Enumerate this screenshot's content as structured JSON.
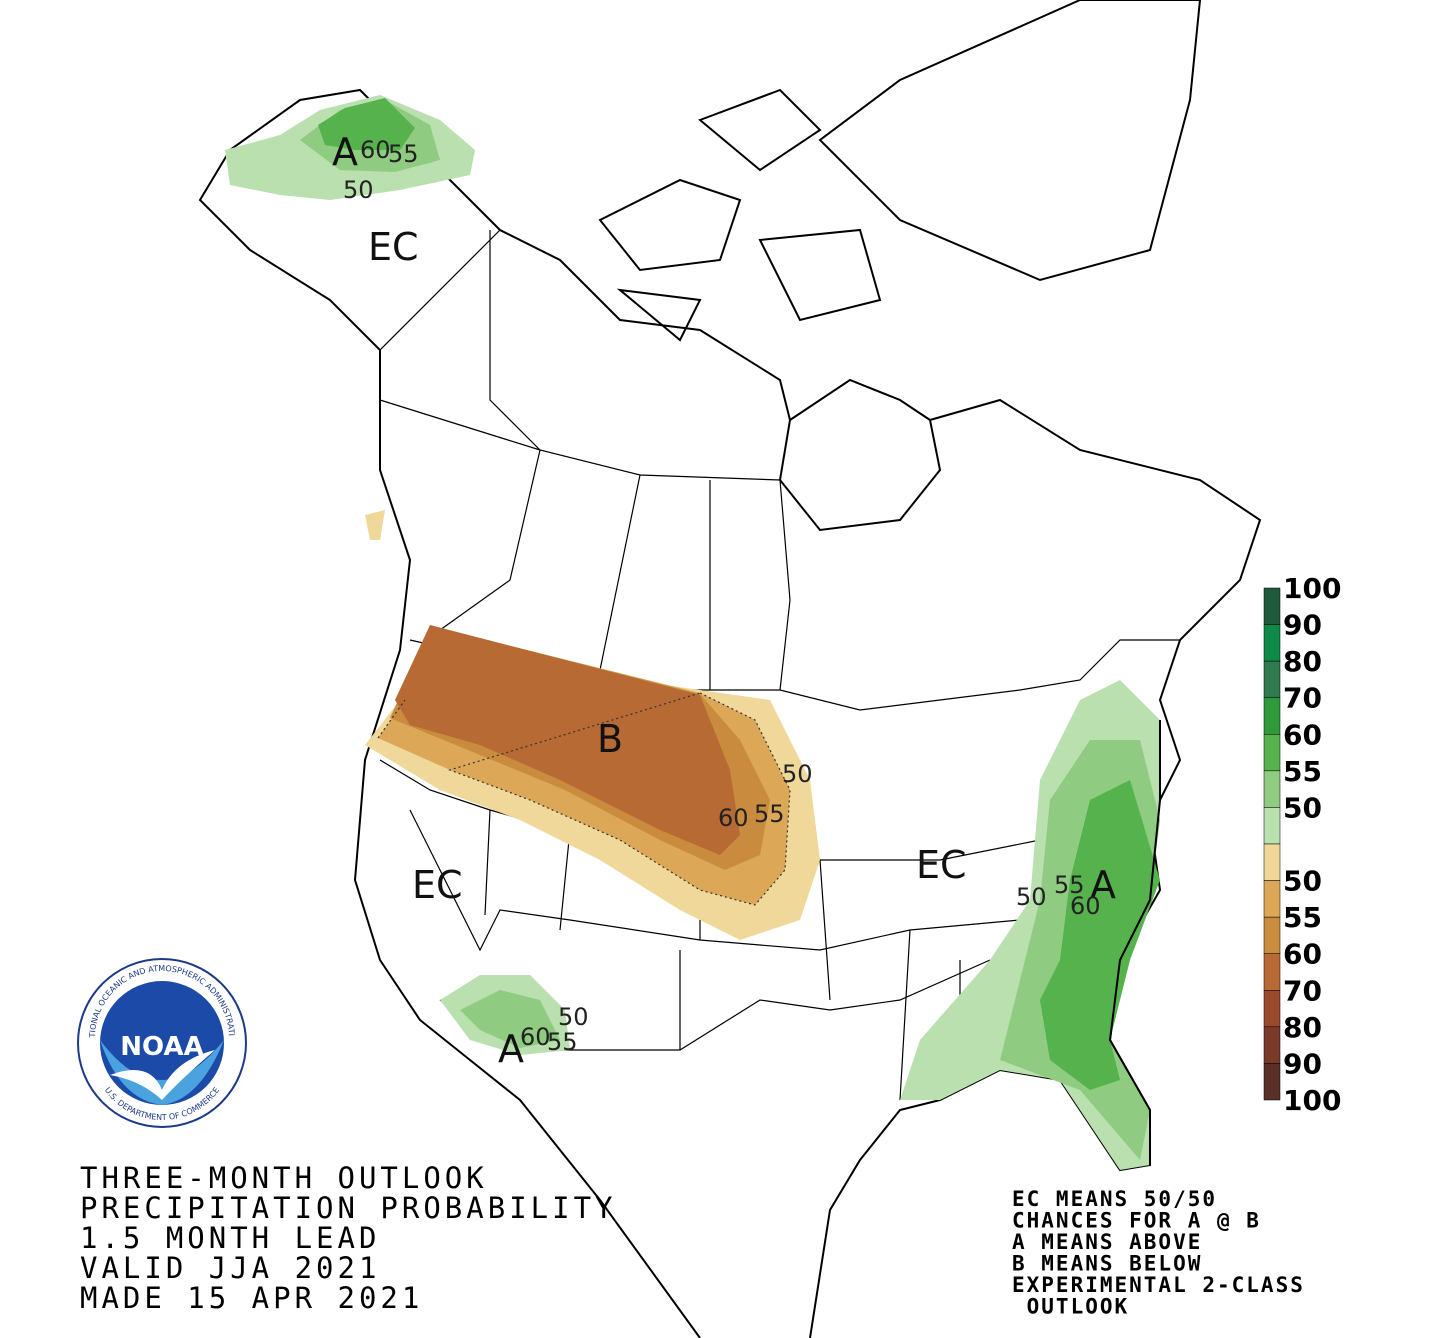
{
  "title_lines": [
    "THREE-MONTH OUTLOOK",
    "PRECIPITATION PROBABILITY",
    "1.5 MONTH LEAD",
    "VALID JJA 2021",
    "MADE 15 APR 2021"
  ],
  "notes": [
    "EC MEANS 50/50",
    "CHANCES FOR A @ B",
    "A MEANS ABOVE",
    "B MEANS BELOW",
    "EXPERIMENTAL 2-CLASS",
    " OUTLOOK"
  ],
  "logo": {
    "text": "NOAA",
    "ring_top": "NATIONAL OCEANIC AND ATMOSPHERIC ADMINISTRATION",
    "ring_bottom": "U.S. DEPARTMENT OF COMMERCE"
  },
  "legend": [
    {
      "label": "100",
      "color": "#1f5a3c"
    },
    {
      "label": "90",
      "color": "#0e8a48"
    },
    {
      "label": "80",
      "color": "#2f7a4f"
    },
    {
      "label": "70",
      "color": "#2f9a3a"
    },
    {
      "label": "60",
      "color": "#55b24c"
    },
    {
      "label": "55",
      "color": "#8fcb80"
    },
    {
      "label": "50",
      "color": "#b9e0ae"
    },
    {
      "label": "50",
      "color": "#f0d79a"
    },
    {
      "label": "55",
      "color": "#dca858"
    },
    {
      "label": "60",
      "color": "#c98b3d"
    },
    {
      "label": "70",
      "color": "#b76a33"
    },
    {
      "label": "80",
      "color": "#9a4a2c"
    },
    {
      "label": "90",
      "color": "#7a3a2a"
    },
    {
      "label": "100",
      "color": "#5a2f28"
    }
  ],
  "map_labels": {
    "alaska": [
      "A",
      "60",
      "55",
      "50"
    ],
    "alaska_ec": "EC",
    "northwest": [
      "B",
      "50",
      "60",
      "55"
    ],
    "west_ec": "EC",
    "east_ec": "EC",
    "southeast": [
      "A",
      "55",
      "60",
      "50"
    ],
    "southwest": [
      "A",
      "60",
      "55",
      "50"
    ]
  }
}
